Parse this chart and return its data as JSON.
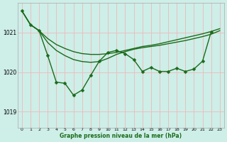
{
  "bg_color": "#ceeee8",
  "grid_color": "#e8c0c0",
  "line_color": "#1a6b1a",
  "title": "Graphe pression niveau de la mer (hPa)",
  "xlim": [
    -0.5,
    23.5
  ],
  "ylim": [
    1018.6,
    1021.75
  ],
  "yticks": [
    1019,
    1020,
    1021
  ],
  "xticks": [
    0,
    1,
    2,
    3,
    4,
    5,
    6,
    7,
    8,
    9,
    10,
    11,
    12,
    13,
    14,
    15,
    16,
    17,
    18,
    19,
    20,
    21,
    22,
    23
  ],
  "s1_x": [
    0,
    1,
    2,
    3,
    4,
    5,
    6,
    7,
    8,
    9,
    10,
    11,
    12,
    13,
    14,
    15,
    16,
    17,
    18,
    19,
    20,
    21,
    22,
    23
  ],
  "s1_y": [
    1021.55,
    1021.2,
    1021.05,
    1020.85,
    1020.7,
    1020.6,
    1020.52,
    1020.47,
    1020.45,
    1020.45,
    1020.47,
    1020.5,
    1020.55,
    1020.6,
    1020.65,
    1020.68,
    1020.72,
    1020.77,
    1020.82,
    1020.87,
    1020.92,
    1020.97,
    1021.03,
    1021.1
  ],
  "s2_x": [
    0,
    1,
    2,
    3,
    4,
    5,
    6,
    7,
    8,
    9,
    10,
    11,
    12,
    13,
    14,
    15,
    16,
    17,
    18,
    19,
    20,
    21,
    22,
    23
  ],
  "s2_y": [
    1021.55,
    1021.2,
    1021.05,
    1020.75,
    1020.55,
    1020.42,
    1020.32,
    1020.27,
    1020.25,
    1020.27,
    1020.35,
    1020.45,
    1020.52,
    1020.58,
    1020.62,
    1020.65,
    1020.68,
    1020.72,
    1020.76,
    1020.8,
    1020.85,
    1020.9,
    1020.96,
    1021.05
  ],
  "s3_x": [
    0,
    1,
    2,
    3,
    4,
    5,
    6,
    7,
    8,
    9,
    10,
    11,
    12,
    13,
    14,
    15,
    16,
    17,
    18,
    19,
    20,
    21,
    22,
    23
  ],
  "s3_y": [
    1021.55,
    1021.2,
    1021.05,
    1020.42,
    1019.75,
    1019.72,
    1019.42,
    1019.55,
    1019.92,
    1020.28,
    1020.5,
    1020.55,
    1020.47,
    1020.32,
    1020.02,
    1020.12,
    1020.02,
    1020.02,
    1020.1,
    1020.02,
    1020.08,
    1020.28,
    1021.02,
    null
  ],
  "lw": 1.0,
  "ms": 2.5
}
